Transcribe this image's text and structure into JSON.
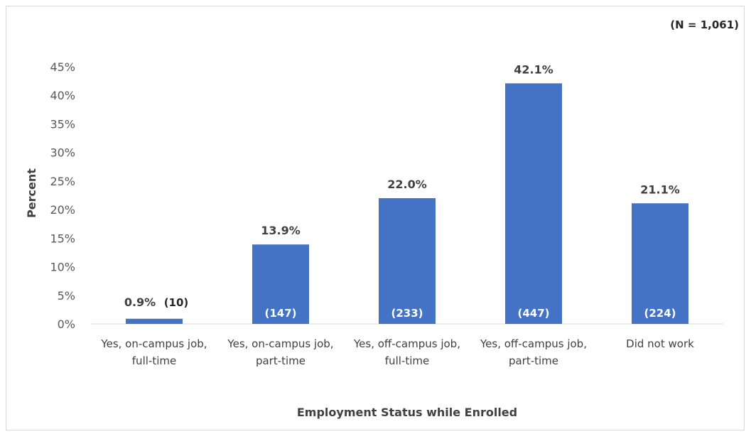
{
  "chart_data": {
    "type": "bar",
    "sample_note": "(N = 1,061)",
    "xlabel": "Employment Status while Enrolled",
    "ylabel": "Percent",
    "ylim": [
      0,
      45
    ],
    "y_ticks": [
      "0%",
      "5%",
      "10%",
      "15%",
      "20%",
      "25%",
      "30%",
      "35%",
      "40%",
      "45%"
    ],
    "y_tick_values": [
      0,
      5,
      10,
      15,
      20,
      25,
      30,
      35,
      40,
      45
    ],
    "grid": false,
    "bar_color": "#4472C4",
    "categories": [
      [
        "Yes, on-campus job,",
        "full-time"
      ],
      [
        "Yes, on-campus job,",
        "part-time"
      ],
      [
        "Yes, off-campus job,",
        "full-time"
      ],
      [
        "Yes, off-campus job,",
        "part-time"
      ],
      [
        "Did not work"
      ]
    ],
    "values": [
      0.9,
      13.9,
      22.0,
      42.1,
      21.1
    ],
    "value_labels": [
      "0.9%",
      "13.9%",
      "22.0%",
      "42.1%",
      "21.1%"
    ],
    "count_labels": [
      "(10)",
      "(147)",
      "(233)",
      "(447)",
      "(224)"
    ]
  }
}
